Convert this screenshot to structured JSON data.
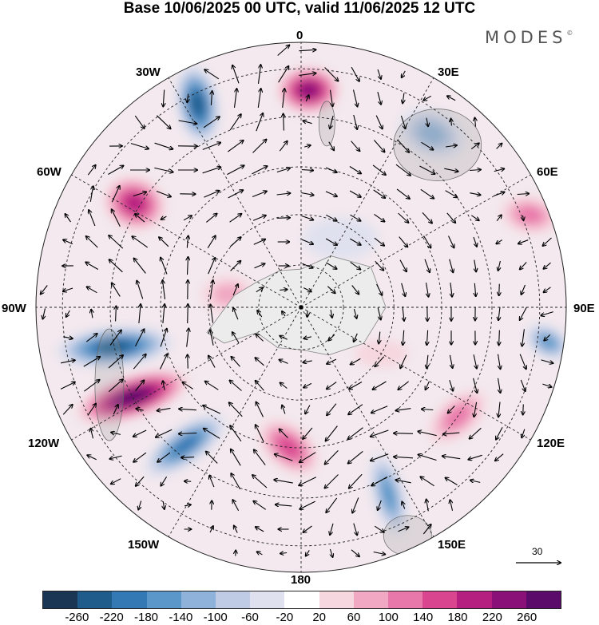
{
  "title": "Base 10/06/2025 00 UTC, valid 11/06/2025 12 UTC",
  "brand": "MODES",
  "brand_mark": "©",
  "projection": "south-polar-stereographic",
  "longitude_labels": {
    "lon_0": "0",
    "lon_30e": "30E",
    "lon_60e": "60E",
    "lon_90e": "90E",
    "lon_120e": "120E",
    "lon_150e": "150E",
    "lon_180": "180",
    "lon_150w": "150W",
    "lon_120w": "120W",
    "lon_90w": "90W",
    "lon_60w": "60W",
    "lon_30w": "30W"
  },
  "reference_vector": {
    "value": "30"
  },
  "colorbar": {
    "ticks": [
      "-260",
      "-220",
      "-180",
      "-140",
      "-100",
      "-60",
      "-20",
      "20",
      "60",
      "100",
      "140",
      "180",
      "220",
      "260"
    ],
    "colors": [
      "#1a3654",
      "#1f5c8c",
      "#3478b4",
      "#5b97c8",
      "#8eb2d9",
      "#bfcbe4",
      "#e0e1ef",
      "#ffffff",
      "#f6d6df",
      "#f1a8c2",
      "#e878aa",
      "#d9458f",
      "#b51f80",
      "#8a1178",
      "#5b0c6a"
    ]
  },
  "anomalies": [
    {
      "lon": -62,
      "r": 0.72,
      "v": 260,
      "sx": 0.22,
      "sy": 0.08,
      "rot": -18
    },
    {
      "lon": -78,
      "r": 0.72,
      "v": -240,
      "sx": 0.22,
      "sy": 0.075,
      "rot": -5
    },
    {
      "lon": -40,
      "r": 0.68,
      "v": -180,
      "sx": 0.18,
      "sy": 0.07,
      "rot": -35
    },
    {
      "lon": -5,
      "r": 0.53,
      "v": 160,
      "sx": 0.13,
      "sy": 0.08,
      "rot": 40
    },
    {
      "lon": 25,
      "r": 0.78,
      "v": -160,
      "sx": 0.16,
      "sy": 0.06,
      "rot": 75
    },
    {
      "lon": 55,
      "r": 0.72,
      "v": 120,
      "sx": 0.13,
      "sy": 0.07,
      "rot": -40
    },
    {
      "lon": 82,
      "r": 0.94,
      "v": -140,
      "sx": 0.09,
      "sy": 0.06,
      "rot": 30
    },
    {
      "lon": 112,
      "r": 0.93,
      "v": 120,
      "sx": 0.11,
      "sy": 0.07,
      "rot": 10
    },
    {
      "lon": 143,
      "r": 0.82,
      "v": -100,
      "sx": 0.13,
      "sy": 0.09,
      "rot": 20
    },
    {
      "lon": 178,
      "r": 0.82,
      "v": 220,
      "sx": 0.12,
      "sy": 0.09,
      "rot": 0
    },
    {
      "lon": -153,
      "r": 0.86,
      "v": -240,
      "sx": 0.08,
      "sy": 0.15,
      "rot": -10
    },
    {
      "lon": -122,
      "r": 0.74,
      "v": 180,
      "sx": 0.12,
      "sy": 0.1,
      "rot": 20
    },
    {
      "lon": -100,
      "r": 0.28,
      "v": 60,
      "sx": 0.1,
      "sy": 0.07,
      "rot": 0
    },
    {
      "lon": 60,
      "r": 0.35,
      "v": 40,
      "sx": 0.1,
      "sy": 0.05,
      "rot": 0
    },
    {
      "lon": 150,
      "r": 0.3,
      "v": -40,
      "sx": 0.14,
      "sy": 0.08,
      "rot": 0
    }
  ]
}
